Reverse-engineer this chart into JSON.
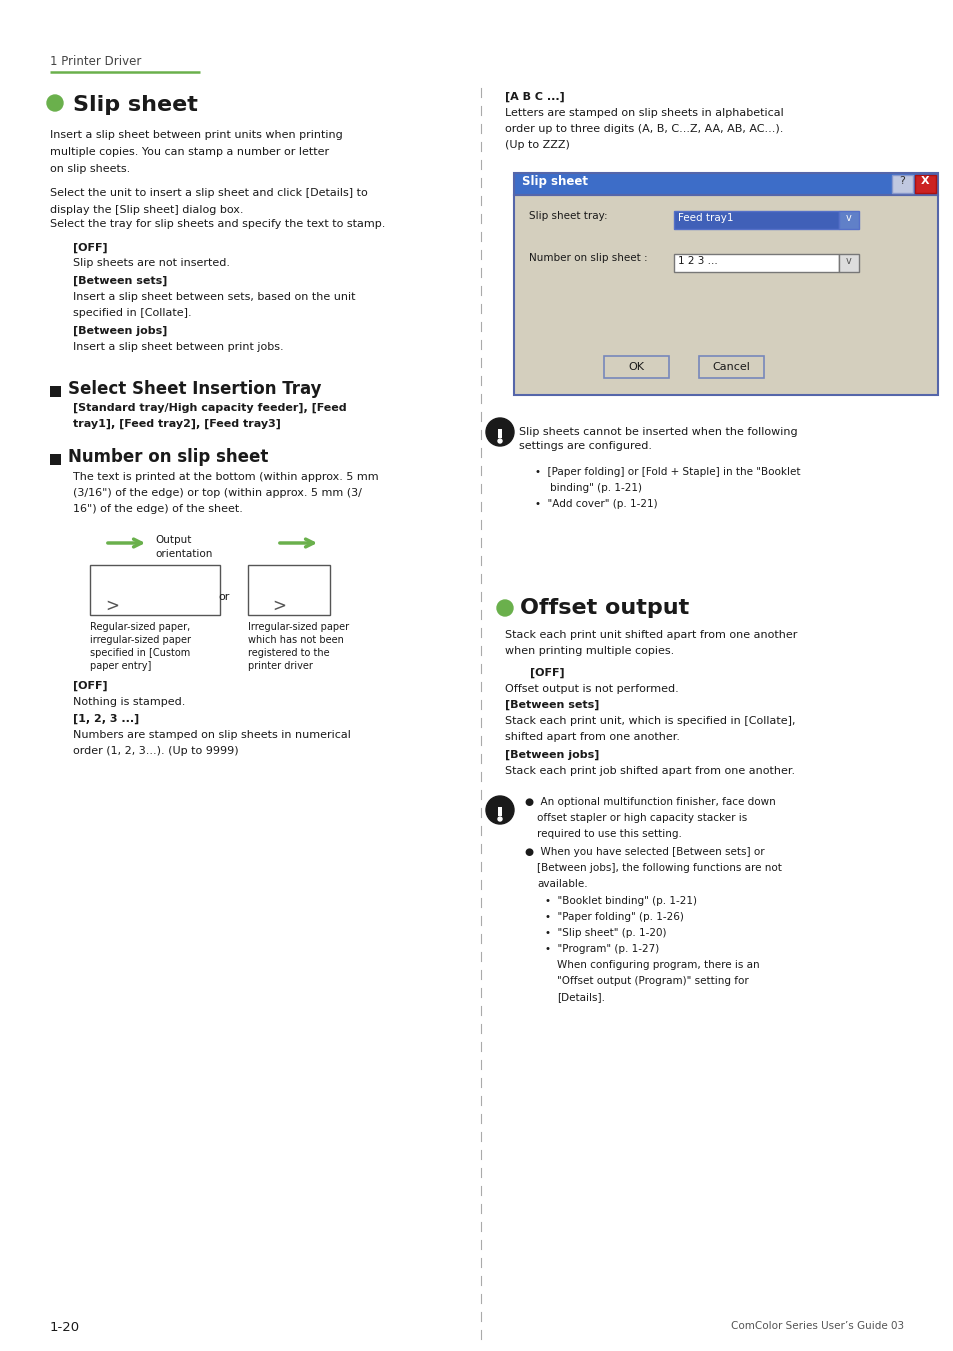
{
  "bg_color": "#ffffff",
  "page_width": 9.54,
  "page_height": 13.51,
  "dpi": 100,
  "green_color": "#6ab04c",
  "footer_left": "1-20",
  "footer_right": "ComColor Series User’s Guide 03",
  "dialog_bg": "#d4cfbe",
  "dialog_header_bg": "#3d6dc8",
  "dialog_title": "Slip sheet",
  "dialog_field1_label": "Slip sheet tray:",
  "dialog_field1_value": "Feed tray1",
  "dialog_field2_label": "Number on slip sheet :",
  "dialog_field2_value": "1 2 3 ...",
  "dialog_ok": "OK",
  "dialog_cancel": "Cancel"
}
